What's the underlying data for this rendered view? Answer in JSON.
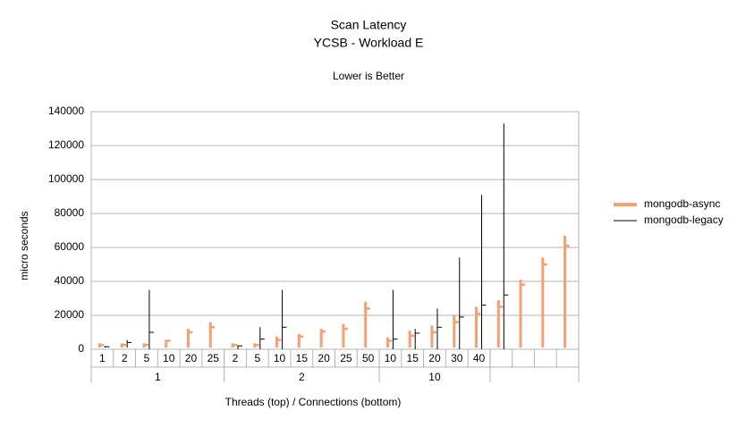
{
  "chart_data": {
    "type": "stock",
    "title": "Scan Latency",
    "subtitle": "YCSB - Workload E",
    "annotation": "Lower is Better",
    "ylabel": "micro seconds",
    "xlabel": "Threads (top)  / Connections (bottom)",
    "categories": [
      "1",
      "2",
      "5",
      "10",
      "20",
      "25",
      "2",
      "5",
      "10",
      "15",
      "20",
      "25",
      "50",
      "10",
      "15",
      "20",
      "30",
      "40",
      null,
      null,
      null,
      null
    ],
    "category_groups": [
      {
        "label": "1",
        "count": 6
      },
      {
        "label": "2",
        "count": 7
      },
      {
        "label": "10",
        "count": 5
      },
      {
        "label": null,
        "count": 4
      }
    ],
    "ylim": [
      0,
      140000
    ],
    "yticks": [
      0,
      20000,
      40000,
      60000,
      80000,
      100000,
      120000,
      140000
    ],
    "grid": true,
    "legend": "right",
    "series": [
      {
        "name": "mongodb-async",
        "color": "#f4a070",
        "high": [
          3500,
          3500,
          3500,
          5500,
          12000,
          16000,
          3500,
          3500,
          7500,
          9000,
          12000,
          15000,
          28000,
          7000,
          11000,
          14000,
          20000,
          25000,
          29000,
          41000,
          54000,
          67000
        ],
        "low": [
          1000,
          1000,
          1000,
          1000,
          1000,
          1000,
          1000,
          1000,
          1000,
          1000,
          1000,
          1000,
          1000,
          1000,
          1000,
          1000,
          1000,
          1000,
          1000,
          1000,
          1000,
          1000
        ],
        "close": [
          2500,
          2500,
          2500,
          5000,
          10000,
          13000,
          2500,
          2500,
          5500,
          7500,
          10500,
          12000,
          24000,
          5000,
          8000,
          10000,
          16000,
          21000,
          25000,
          38000,
          50000,
          61000
        ]
      },
      {
        "name": "mongodb-legacy",
        "color": "#000000",
        "high": [
          2000,
          5500,
          35000,
          null,
          null,
          null,
          2500,
          13000,
          35000,
          null,
          null,
          null,
          null,
          35000,
          12000,
          24000,
          54000,
          91000,
          133000,
          null,
          null,
          null
        ],
        "low": [
          1000,
          1000,
          0,
          null,
          null,
          null,
          0,
          0,
          0,
          null,
          null,
          null,
          null,
          0,
          0,
          0,
          0,
          0,
          0,
          null,
          null,
          null
        ],
        "close": [
          1500,
          4000,
          10000,
          null,
          null,
          null,
          2000,
          6000,
          13000,
          null,
          null,
          null,
          null,
          6000,
          9500,
          13000,
          19000,
          26000,
          32000,
          null,
          null,
          null
        ]
      }
    ]
  }
}
